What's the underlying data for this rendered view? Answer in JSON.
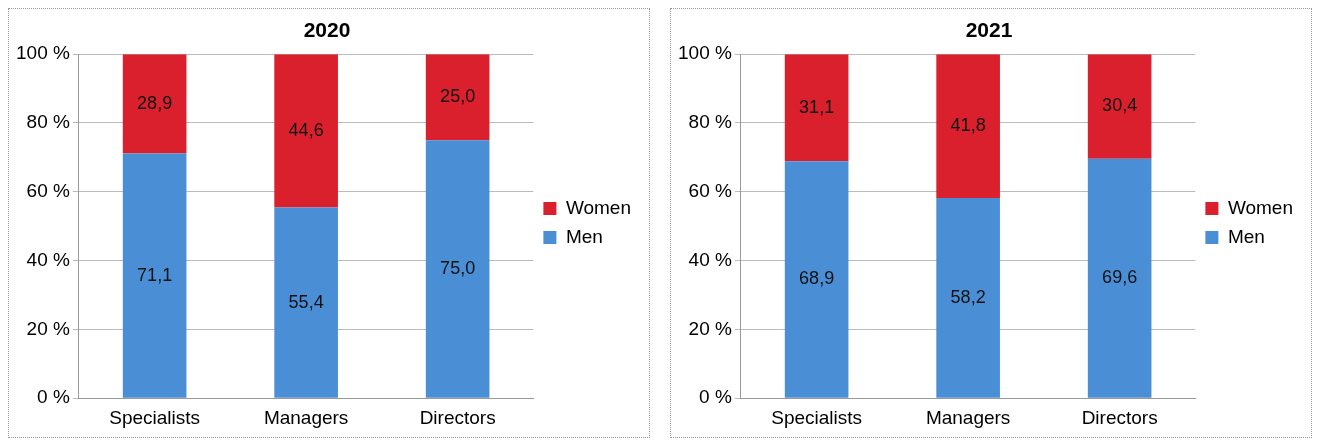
{
  "chart_data": [
    {
      "type": "bar",
      "title": "2020",
      "categories": [
        "Specialists",
        "Managers",
        "Directors"
      ],
      "stacked": true,
      "legend": "right",
      "grid": "y",
      "ylim": [
        0,
        100
      ],
      "yticks": [
        {
          "value": 0,
          "label": "0 %"
        },
        {
          "value": 20,
          "label": "20 %"
        },
        {
          "value": 40,
          "label": "40 %"
        },
        {
          "value": 60,
          "label": "60 %"
        },
        {
          "value": 80,
          "label": "80 %"
        },
        {
          "value": 100,
          "label": "100 %"
        }
      ],
      "series": [
        {
          "name": "Men",
          "color": "#4a8fd6",
          "values": [
            71.1,
            55.4,
            75.0
          ],
          "value_labels": [
            "71,1",
            "55,4",
            "75,0"
          ]
        },
        {
          "name": "Women",
          "color": "#d9202c",
          "values": [
            28.9,
            44.6,
            25.0
          ],
          "value_labels": [
            "28,9",
            "44,6",
            "25,0"
          ]
        }
      ]
    },
    {
      "type": "bar",
      "title": "2021",
      "categories": [
        "Specialists",
        "Managers",
        "Directors"
      ],
      "stacked": true,
      "legend": "right",
      "grid": "y",
      "ylim": [
        0,
        100
      ],
      "yticks": [
        {
          "value": 0,
          "label": "0 %"
        },
        {
          "value": 20,
          "label": "20 %"
        },
        {
          "value": 40,
          "label": "40 %"
        },
        {
          "value": 60,
          "label": "60 %"
        },
        {
          "value": 80,
          "label": "80 %"
        },
        {
          "value": 100,
          "label": "100 %"
        }
      ],
      "series": [
        {
          "name": "Men",
          "color": "#4a8fd6",
          "values": [
            68.9,
            58.2,
            69.6
          ],
          "value_labels": [
            "68,9",
            "58,2",
            "69,6"
          ]
        },
        {
          "name": "Women",
          "color": "#d9202c",
          "values": [
            31.1,
            41.8,
            30.4
          ],
          "value_labels": [
            "31,1",
            "41,8",
            "30,4"
          ]
        }
      ]
    }
  ]
}
